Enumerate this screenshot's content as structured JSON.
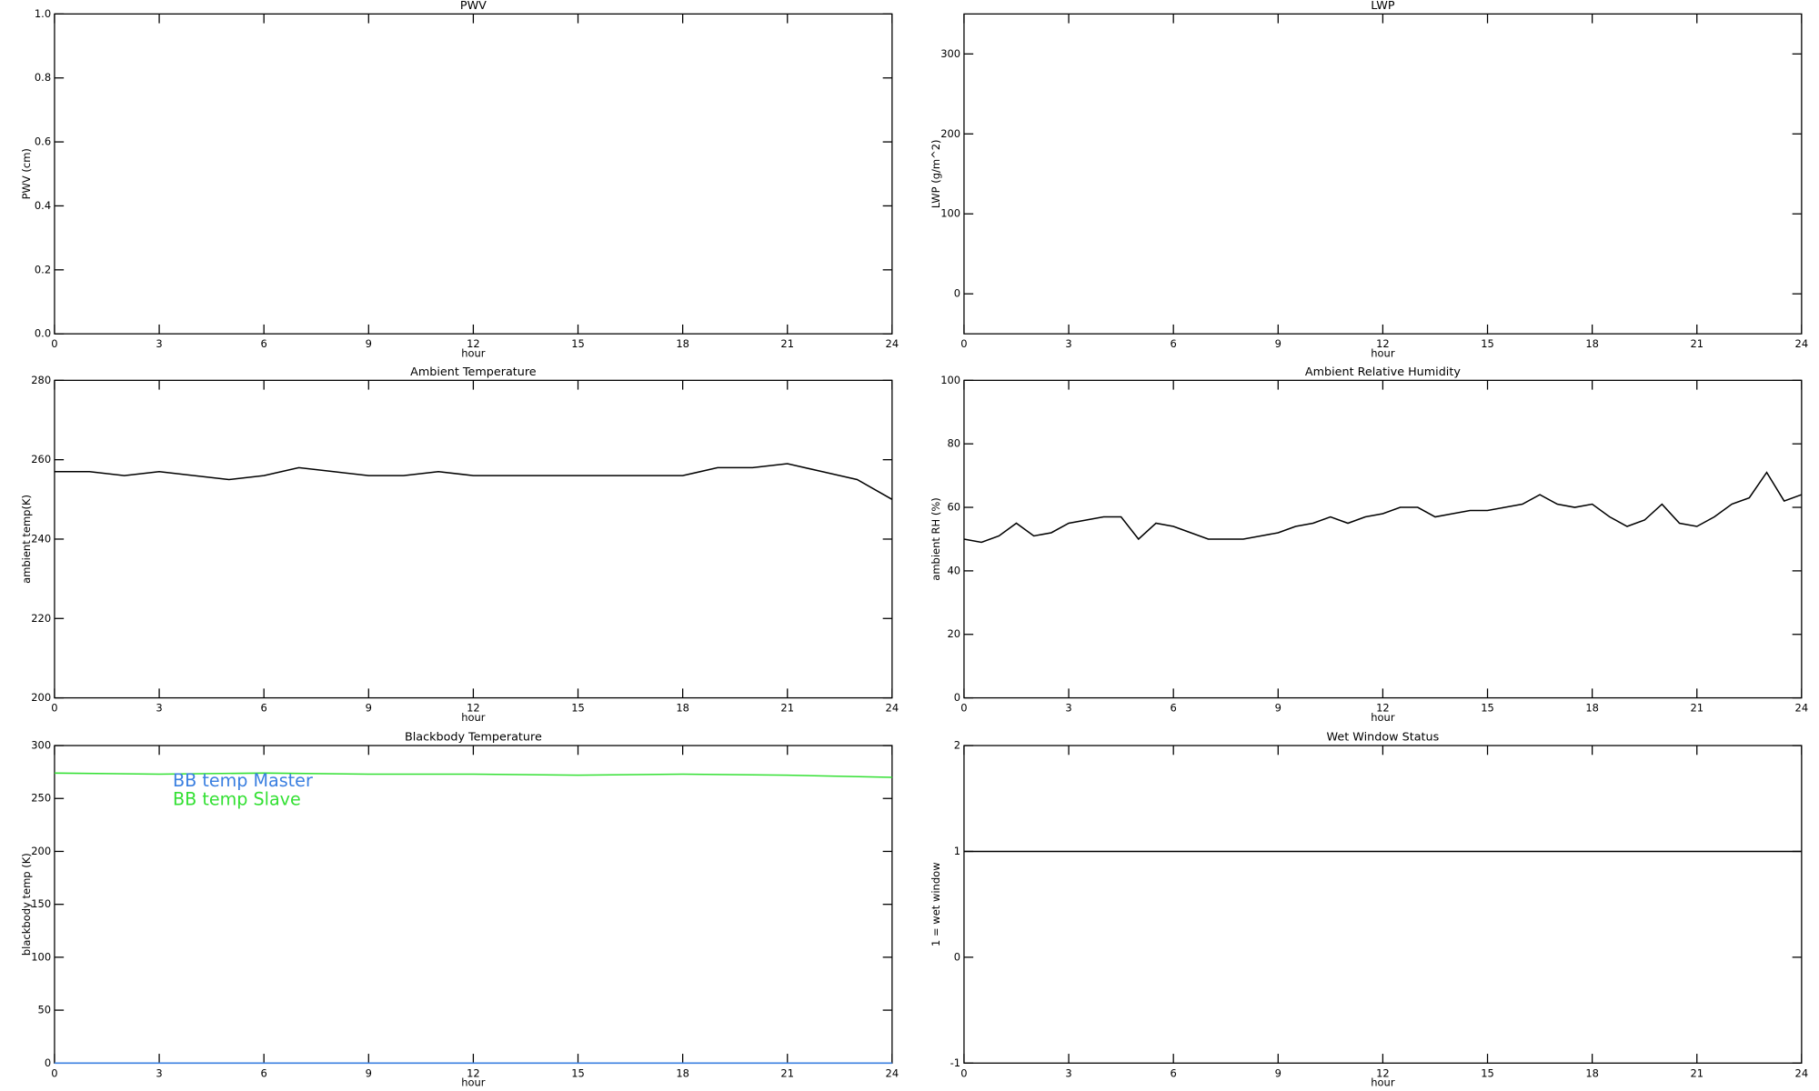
{
  "chart_data": [
    {
      "type": "line",
      "title": "PWV",
      "xlabel": "hour",
      "ylabel": "PWV (cm)",
      "xlim": [
        0,
        24
      ],
      "xticks": [
        0,
        3,
        6,
        9,
        12,
        15,
        18,
        21,
        24
      ],
      "ylim": [
        0,
        1
      ],
      "yticks": [
        {
          "value": 0,
          "label": "0.0"
        },
        0.2,
        0.4,
        0.6,
        0.8,
        {
          "value": 1,
          "label": "1.0"
        }
      ]
    },
    {
      "type": "line",
      "title": "LWP",
      "xlabel": "hour",
      "ylabel": "LWP (g/m^2)",
      "xlim": [
        0,
        24
      ],
      "xticks": [
        0,
        3,
        6,
        9,
        12,
        15,
        18,
        21,
        24
      ],
      "ylim": [
        -50,
        350
      ],
      "yticks": [
        0,
        100,
        200,
        300
      ]
    },
    {
      "type": "line",
      "title": "Ambient Temperature",
      "xlabel": "hour",
      "ylabel": "ambient temp(K)",
      "xlim": [
        0,
        24
      ],
      "xticks": [
        0,
        3,
        6,
        9,
        12,
        15,
        18,
        21,
        24
      ],
      "ylim": [
        200,
        280
      ],
      "yticks": [
        200,
        220,
        240,
        260,
        280
      ],
      "x": [
        0,
        1,
        2,
        3,
        4,
        5,
        6,
        7,
        8,
        9,
        10,
        11,
        12,
        13,
        14,
        15,
        16,
        17,
        18,
        19,
        20,
        21,
        22,
        23,
        24
      ],
      "series": [
        {
          "color": "#000000",
          "values": [
            257,
            257,
            256,
            257,
            256,
            255,
            256,
            258,
            257,
            256,
            256,
            257,
            256,
            256,
            256,
            256,
            256,
            256,
            256,
            258,
            258,
            259,
            257,
            255,
            250
          ]
        }
      ]
    },
    {
      "type": "line",
      "title": "Ambient Relative Humidity",
      "xlabel": "hour",
      "ylabel": "ambient RH (%)",
      "xlim": [
        0,
        24
      ],
      "xticks": [
        0,
        3,
        6,
        9,
        12,
        15,
        18,
        21,
        24
      ],
      "ylim": [
        0,
        100
      ],
      "yticks": [
        0,
        20,
        40,
        60,
        80,
        100
      ],
      "x": [
        0,
        0.5,
        1,
        1.5,
        2,
        2.5,
        3,
        3.5,
        4,
        4.5,
        5,
        5.5,
        6,
        6.5,
        7,
        7.5,
        8,
        8.5,
        9,
        9.5,
        10,
        10.5,
        11,
        11.5,
        12,
        12.5,
        13,
        13.5,
        14,
        14.5,
        15,
        15.5,
        16,
        16.5,
        17,
        17.5,
        18,
        18.5,
        19,
        19.5,
        20,
        20.5,
        21,
        21.5,
        22,
        22.5,
        23,
        23.5,
        24
      ],
      "series": [
        {
          "color": "#000000",
          "values": [
            50,
            49,
            51,
            55,
            51,
            52,
            55,
            56,
            57,
            57,
            50,
            55,
            54,
            52,
            50,
            50,
            50,
            51,
            52,
            54,
            55,
            57,
            55,
            57,
            58,
            60,
            60,
            57,
            58,
            59,
            59,
            60,
            61,
            64,
            61,
            60,
            61,
            57,
            54,
            56,
            61,
            55,
            54,
            57,
            61,
            63,
            71,
            62,
            64
          ]
        }
      ]
    },
    {
      "type": "line",
      "title": "Blackbody Temperature",
      "xlabel": "hour",
      "ylabel": "blackbody temp (K)",
      "xlim": [
        0,
        24
      ],
      "xticks": [
        0,
        3,
        6,
        9,
        12,
        15,
        18,
        21,
        24
      ],
      "ylim": [
        0,
        300
      ],
      "yticks": [
        0,
        50,
        100,
        150,
        200,
        250,
        300
      ],
      "x": [
        0,
        3,
        6,
        9,
        12,
        15,
        18,
        21,
        24
      ],
      "series": [
        {
          "name": "BB temp Master",
          "color": "#3a7fe0",
          "values": [
            0,
            0,
            0,
            0,
            0,
            0,
            0,
            0,
            0
          ]
        },
        {
          "name": "BB temp Slave",
          "color": "#33e033",
          "values": [
            274,
            273,
            274,
            273,
            273,
            272,
            273,
            272,
            270
          ]
        }
      ]
    },
    {
      "type": "line",
      "title": "Wet Window Status",
      "xlabel": "hour",
      "ylabel": "1 = wet window",
      "xlim": [
        0,
        24
      ],
      "xticks": [
        0,
        3,
        6,
        9,
        12,
        15,
        18,
        21,
        24
      ],
      "ylim": [
        -1,
        2
      ],
      "yticks": [
        -1,
        0,
        1,
        2
      ],
      "x": [
        0,
        24
      ],
      "series": [
        {
          "color": "#000000",
          "values": [
            1,
            1
          ]
        }
      ]
    }
  ]
}
